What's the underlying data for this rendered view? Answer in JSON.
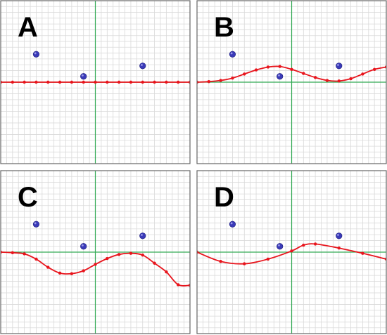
{
  "colors": {
    "grid": "#d9d9d9",
    "axis": "#33aa55",
    "curve": "#e8141c",
    "point": "#3a3ab8",
    "frame": "#666666"
  },
  "chart_data": [
    {
      "type": "scatter",
      "label": "A",
      "xlim": [
        -8,
        8
      ],
      "ylim": [
        -7,
        7
      ],
      "points": [
        [
          -5,
          2.4
        ],
        [
          -1,
          0.5
        ],
        [
          4,
          1.4
        ]
      ],
      "curve": [
        [
          -8,
          0
        ],
        [
          -7,
          0
        ],
        [
          -6,
          0
        ],
        [
          -5,
          0
        ],
        [
          -4,
          0
        ],
        [
          -3,
          0
        ],
        [
          -2,
          0
        ],
        [
          -1,
          0
        ],
        [
          0,
          0
        ],
        [
          1,
          0
        ],
        [
          2,
          0
        ],
        [
          3,
          0
        ],
        [
          4,
          0
        ],
        [
          5,
          0
        ],
        [
          6,
          0
        ],
        [
          7,
          0
        ],
        [
          8,
          0
        ]
      ]
    },
    {
      "type": "scatter",
      "label": "B",
      "xlim": [
        -8,
        8
      ],
      "ylim": [
        -7,
        7
      ],
      "points": [
        [
          -5,
          2.4
        ],
        [
          -1,
          0.5
        ],
        [
          4,
          1.4
        ]
      ],
      "curve": [
        [
          -8,
          0
        ],
        [
          -7,
          0.05
        ],
        [
          -6,
          0.15
        ],
        [
          -5,
          0.35
        ],
        [
          -4,
          0.7
        ],
        [
          -3,
          1.05
        ],
        [
          -2,
          1.3
        ],
        [
          -1,
          1.35
        ],
        [
          0,
          1.1
        ],
        [
          1,
          0.75
        ],
        [
          2,
          0.4
        ],
        [
          3,
          0.15
        ],
        [
          4,
          0.1
        ],
        [
          5,
          0.3
        ],
        [
          6,
          0.7
        ],
        [
          7,
          1.1
        ],
        [
          8,
          1.3
        ]
      ]
    },
    {
      "type": "scatter",
      "label": "C",
      "xlim": [
        -8,
        8
      ],
      "ylim": [
        -7,
        7
      ],
      "points": [
        [
          -5,
          2.4
        ],
        [
          -1,
          0.5
        ],
        [
          4,
          1.4
        ]
      ],
      "curve": [
        [
          -8,
          0
        ],
        [
          -7,
          -0.05
        ],
        [
          -6,
          -0.15
        ],
        [
          -5,
          -0.6
        ],
        [
          -4,
          -1.3
        ],
        [
          -3,
          -1.8
        ],
        [
          -2,
          -1.85
        ],
        [
          -1,
          -1.6
        ],
        [
          0,
          -1.05
        ],
        [
          1,
          -0.55
        ],
        [
          2,
          -0.2
        ],
        [
          3,
          -0.1
        ],
        [
          4,
          -0.25
        ],
        [
          5,
          -0.95
        ],
        [
          6,
          -1.7
        ],
        [
          7,
          -2.8
        ],
        [
          8,
          -2.85
        ]
      ]
    },
    {
      "type": "scatter",
      "label": "D",
      "xlim": [
        -8,
        8
      ],
      "ylim": [
        -7,
        7
      ],
      "points": [
        [
          -5,
          2.4
        ],
        [
          -1,
          0.5
        ],
        [
          4,
          1.4
        ]
      ],
      "curve": [
        [
          -8,
          0
        ],
        [
          -6,
          -0.8
        ],
        [
          -4,
          -1.0
        ],
        [
          -2,
          -0.6
        ],
        [
          0,
          0.1
        ],
        [
          1,
          0.6
        ],
        [
          2,
          0.7
        ],
        [
          4,
          0.35
        ],
        [
          6,
          -0.1
        ],
        [
          8,
          -0.6
        ]
      ]
    }
  ]
}
